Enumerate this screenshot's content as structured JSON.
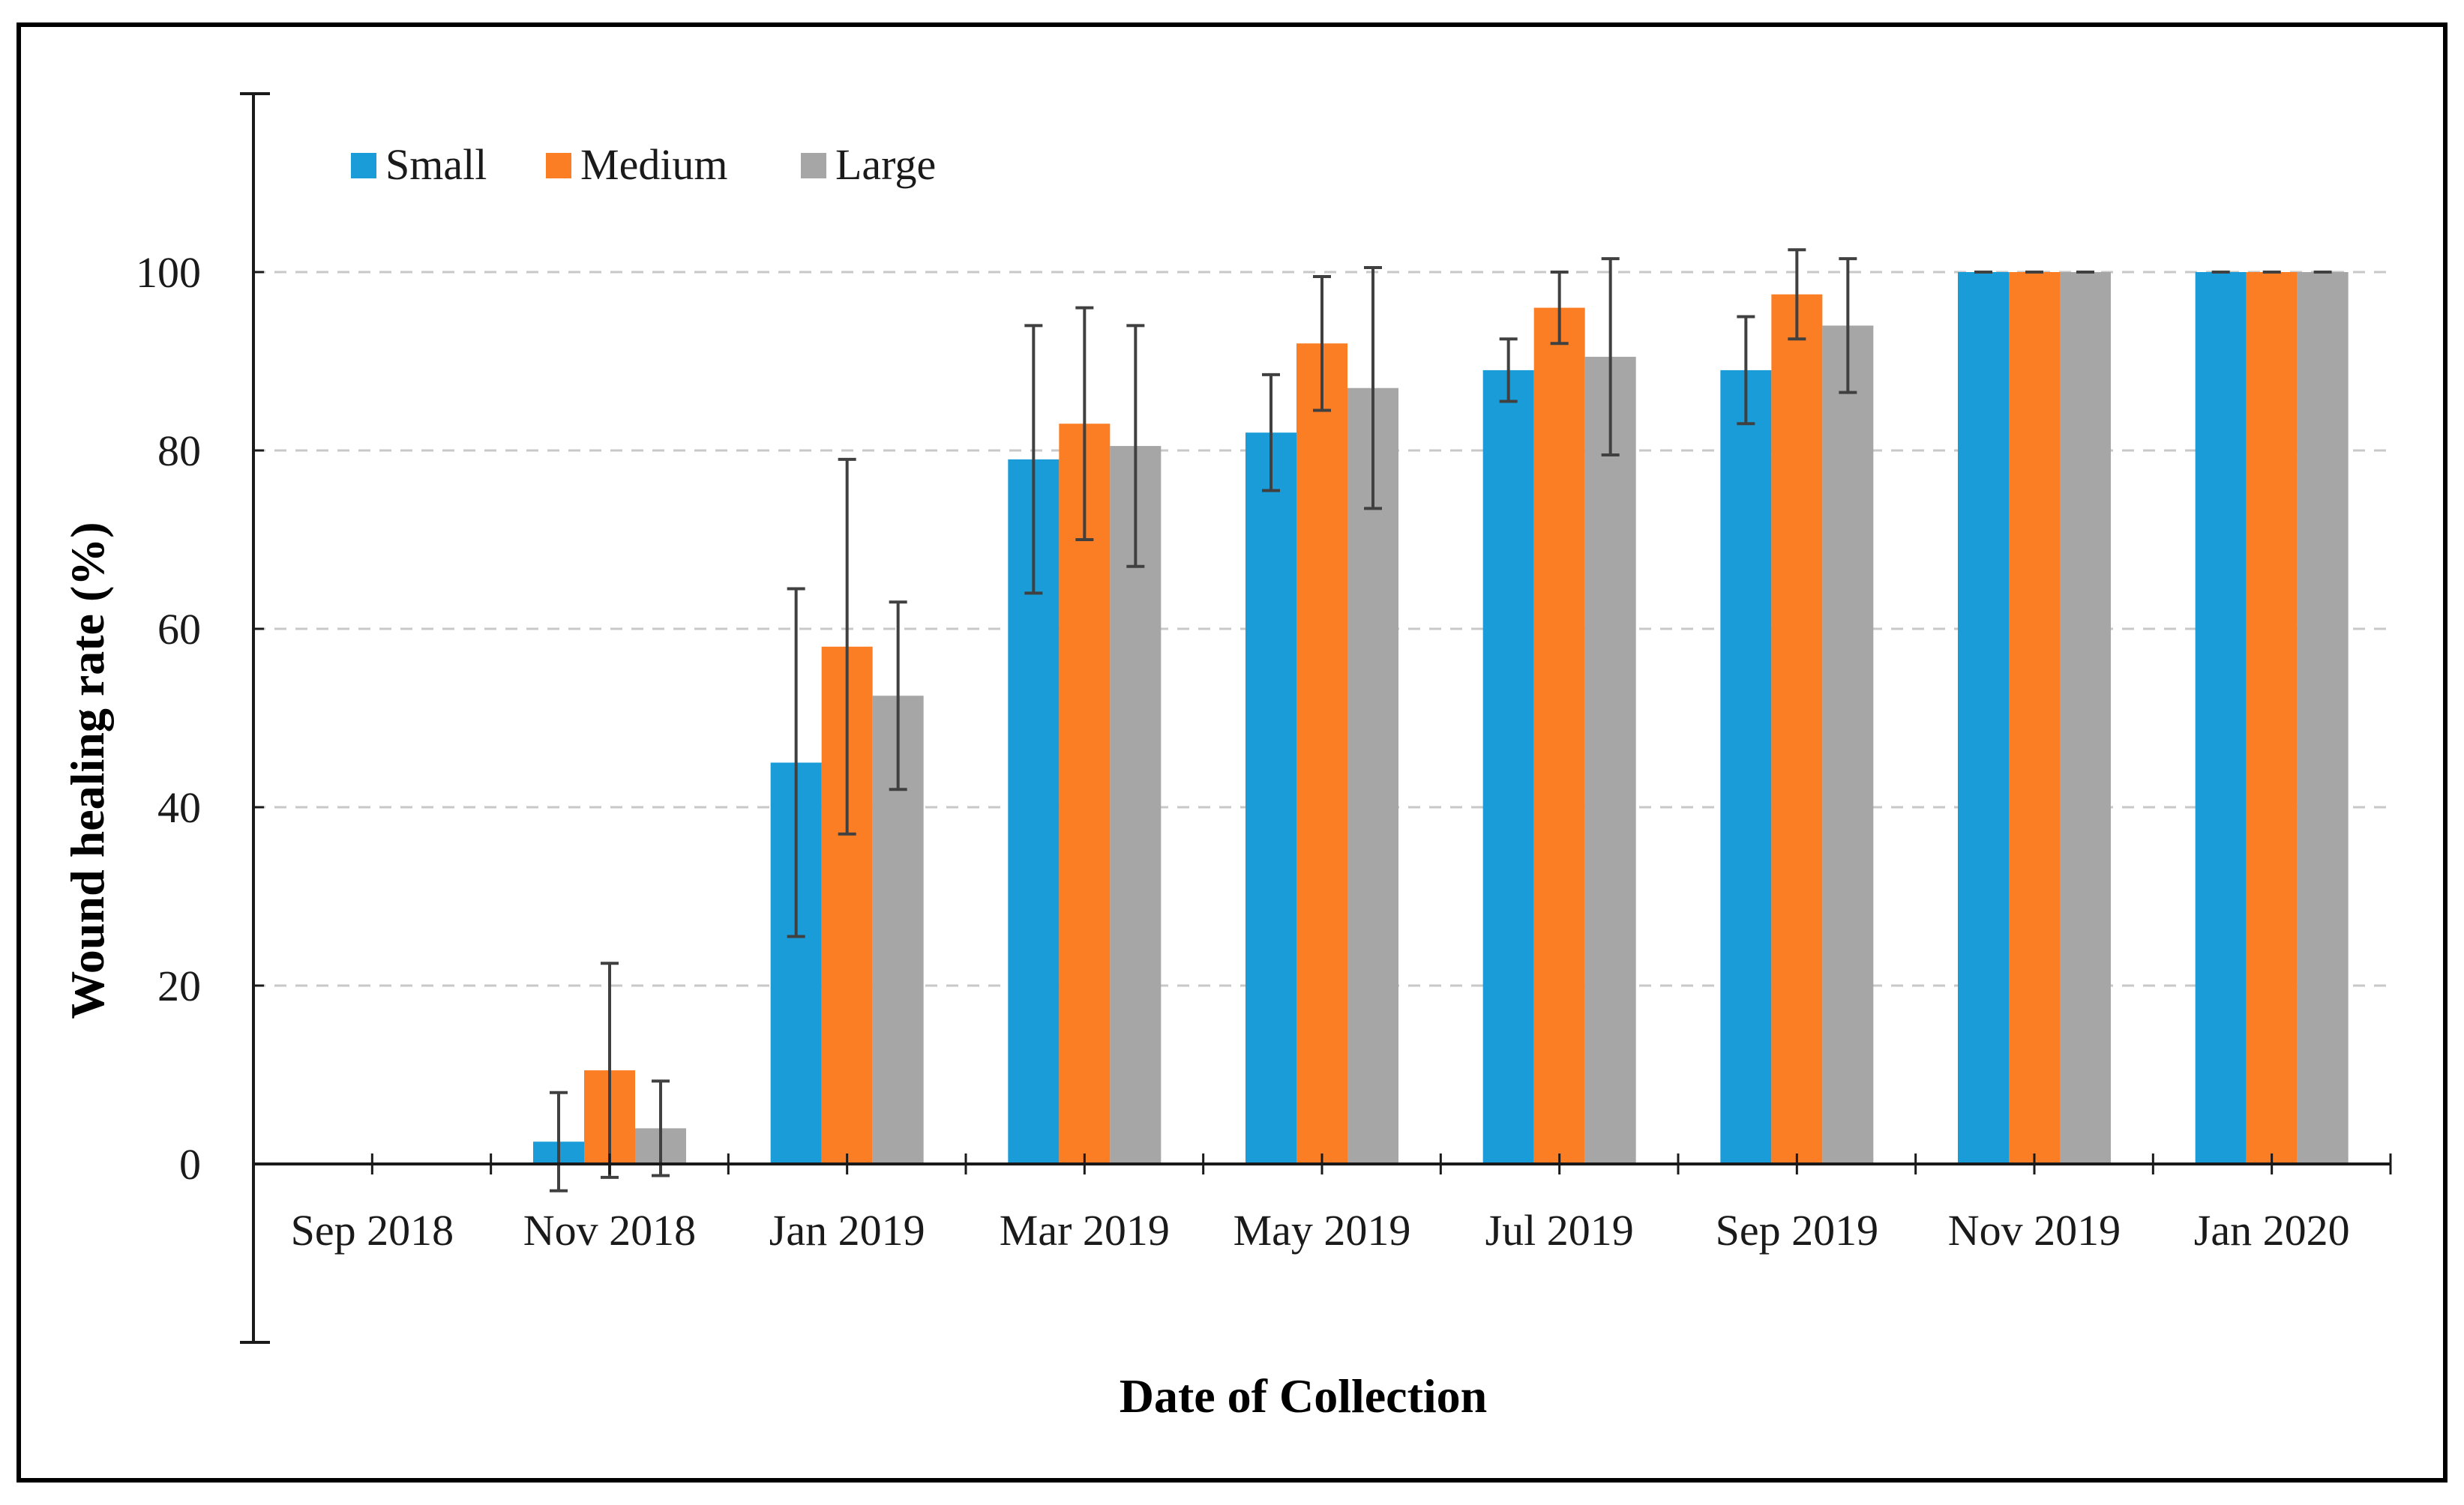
{
  "chart_data": {
    "type": "bar",
    "title": "",
    "xlabel": "Date of Collection",
    "ylabel": "Wound healing rate (%)",
    "ylim": [
      -20,
      120
    ],
    "yticks": [
      "0",
      "20",
      "40",
      "60",
      "80",
      "100"
    ],
    "grid": true,
    "legend_position": "top-left",
    "categories": [
      "Sep 2018",
      "Nov 2018",
      "Jan 2019",
      "Mar 2019",
      "May 2019",
      "Jul 2019",
      "Sep 2019",
      "Nov 2019",
      "Jan 2020"
    ],
    "series": [
      {
        "name": "Small",
        "color": "#1a9cd8",
        "values": [
          0,
          2.5,
          45,
          79,
          82,
          89,
          89,
          100,
          100
        ],
        "errors": [
          0,
          5.5,
          19.5,
          15,
          6.5,
          3.5,
          6,
          0,
          0
        ]
      },
      {
        "name": "Medium",
        "color": "#fb7e25",
        "values": [
          0,
          10.5,
          58,
          83,
          92,
          96,
          97.5,
          100,
          100
        ],
        "errors": [
          0,
          12,
          21,
          13,
          7.5,
          4,
          5,
          0,
          0
        ]
      },
      {
        "name": "Large",
        "color": "#a6a6a6",
        "values": [
          0,
          4,
          52.5,
          80.5,
          87,
          90.5,
          94,
          100,
          100
        ],
        "errors": [
          0,
          5.3,
          10.5,
          13.5,
          13.5,
          11,
          7.5,
          0,
          0
        ]
      }
    ]
  }
}
